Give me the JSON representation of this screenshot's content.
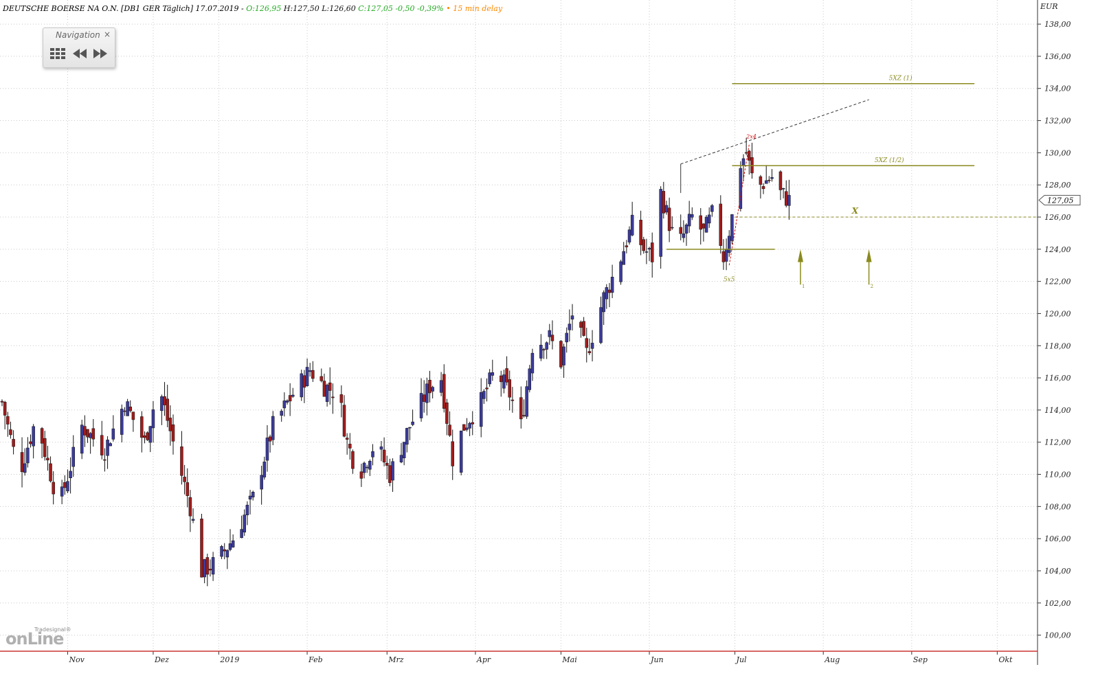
{
  "header": {
    "instrument": "DEUTSCHE BOERSE NA O.N. [DB1 GER Täglich] 17.07.2019 -",
    "open": "O:126,95",
    "high": "H:127,50",
    "low": "L:126,60",
    "close_change": "C:127,05 -0,50 -0,39%",
    "delay": "15 min delay"
  },
  "navigation": {
    "title": "Navigation",
    "close_symbol": "×",
    "grid_icon": "grid-icon",
    "prev_icon": "rewind-icon",
    "next_icon": "fast-forward-icon"
  },
  "logo": {
    "small_text": "Tradesignal®",
    "big_text": "onLine"
  },
  "colors": {
    "up_candle": "#3b3b9c",
    "down_candle": "#a11c1c",
    "wick": "#111111",
    "grid": "#c8c8c8",
    "drawing_olive": "#8a8a1e",
    "annotation_red": "#d01010",
    "axis_line": "#cc3333"
  },
  "chart_data": {
    "type": "candlestick",
    "currency": "EUR",
    "ylim": [
      99,
      139.5
    ],
    "y_ticks": [
      "100,00",
      "102,00",
      "104,00",
      "106,00",
      "108,00",
      "110,00",
      "112,00",
      "114,00",
      "116,00",
      "118,00",
      "120,00",
      "122,00",
      "124,00",
      "126,00",
      "128,00",
      "130,00",
      "132,00",
      "134,00",
      "136,00",
      "138,00"
    ],
    "x_labels": [
      {
        "label": "Nov",
        "day": 23
      },
      {
        "label": "Dez",
        "day": 53
      },
      {
        "label": "2019",
        "day": 76
      },
      {
        "label": "Feb",
        "day": 107
      },
      {
        "label": "Mrz",
        "day": 135
      },
      {
        "label": "Apr",
        "day": 166
      },
      {
        "label": "Mai",
        "day": 196
      },
      {
        "label": "Jun",
        "day": 227
      },
      {
        "label": "Jul",
        "day": 257
      },
      {
        "label": "Aug",
        "day": 288
      },
      {
        "label": "Sep",
        "day": 319
      },
      {
        "label": "Okt",
        "day": 349
      }
    ],
    "last_price_label": "127,05",
    "last_price": 127.05,
    "key_points": [
      {
        "day": 0,
        "price": 114.5
      },
      {
        "day": 6,
        "price": 110
      },
      {
        "day": 12,
        "price": 113.5
      },
      {
        "day": 20,
        "price": 108
      },
      {
        "day": 28,
        "price": 113
      },
      {
        "day": 36,
        "price": 111.5
      },
      {
        "day": 43,
        "price": 114.5
      },
      {
        "day": 50,
        "price": 112
      },
      {
        "day": 55,
        "price": 115.5
      },
      {
        "day": 60,
        "price": 112
      },
      {
        "day": 66,
        "price": 108
      },
      {
        "day": 70,
        "price": 104
      },
      {
        "day": 75,
        "price": 104.5
      },
      {
        "day": 81,
        "price": 106
      },
      {
        "day": 88,
        "price": 108.5
      },
      {
        "day": 95,
        "price": 113
      },
      {
        "day": 102,
        "price": 115
      },
      {
        "day": 108,
        "price": 116.5
      },
      {
        "day": 113,
        "price": 115.5
      },
      {
        "day": 118,
        "price": 115
      },
      {
        "day": 121,
        "price": 112
      },
      {
        "day": 125,
        "price": 110
      },
      {
        "day": 131,
        "price": 112
      },
      {
        "day": 136,
        "price": 110
      },
      {
        "day": 143,
        "price": 113
      },
      {
        "day": 150,
        "price": 115.5
      },
      {
        "day": 154,
        "price": 116
      },
      {
        "day": 158,
        "price": 111
      },
      {
        "day": 162,
        "price": 113
      },
      {
        "day": 168,
        "price": 114.5
      },
      {
        "day": 173,
        "price": 116.5
      },
      {
        "day": 178,
        "price": 115
      },
      {
        "day": 182,
        "price": 113
      },
      {
        "day": 186,
        "price": 118
      },
      {
        "day": 192,
        "price": 118.5
      },
      {
        "day": 196,
        "price": 117
      },
      {
        "day": 200,
        "price": 120
      },
      {
        "day": 205,
        "price": 117.5
      },
      {
        "day": 211,
        "price": 121
      },
      {
        "day": 216,
        "price": 123
      },
      {
        "day": 221,
        "price": 125.5
      },
      {
        "day": 225,
        "price": 124
      },
      {
        "day": 228,
        "price": 123.5
      },
      {
        "day": 231,
        "price": 127.5
      },
      {
        "day": 235,
        "price": 125
      },
      {
        "day": 238,
        "price": 124.5
      },
      {
        "day": 242,
        "price": 126
      },
      {
        "day": 246,
        "price": 125
      },
      {
        "day": 250,
        "price": 126.5
      },
      {
        "day": 253,
        "price": 123.5
      },
      {
        "day": 256,
        "price": 126
      },
      {
        "day": 258,
        "price": 129
      },
      {
        "day": 261,
        "price": 130
      },
      {
        "day": 263,
        "price": 128.5
      },
      {
        "day": 266,
        "price": 128
      },
      {
        "day": 270,
        "price": 128.5
      },
      {
        "day": 273,
        "price": 127.5
      },
      {
        "day": 276,
        "price": 127.05
      }
    ],
    "annotations": {
      "level_1": {
        "label": "5XZ (1)",
        "price": 134.3
      },
      "level_half": {
        "label": "5XZ (1/2)",
        "price": 129.2
      },
      "x_label": "X",
      "x_level": 126.0,
      "support_level": 124.0,
      "wave_top_label": "2x4",
      "wave_low_label": "5x5",
      "arrow_1_label": "1",
      "arrow_2_label": "2"
    }
  }
}
